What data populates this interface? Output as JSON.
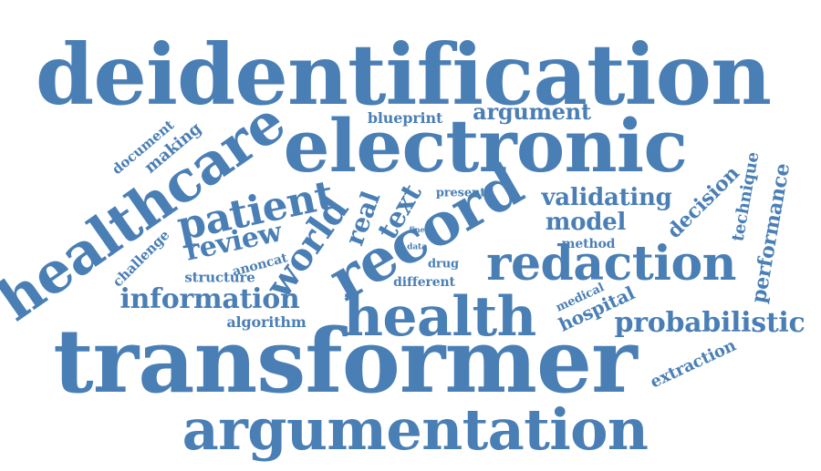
{
  "colors": {
    "word": "#4a7fb5",
    "background": "#ffffff"
  },
  "words": [
    {
      "id": "deidentification",
      "text": "deidentification"
    },
    {
      "id": "electronic",
      "text": "electronic"
    },
    {
      "id": "transformer",
      "text": "transformer"
    },
    {
      "id": "argumentation",
      "text": "argumentation"
    },
    {
      "id": "healthcare",
      "text": "healthcare"
    },
    {
      "id": "record",
      "text": "record"
    },
    {
      "id": "health",
      "text": "health"
    },
    {
      "id": "redaction",
      "text": "redaction"
    },
    {
      "id": "patient",
      "text": "patient"
    },
    {
      "id": "probabilistic",
      "text": "probabilistic"
    },
    {
      "id": "information",
      "text": "information"
    },
    {
      "id": "world",
      "text": "world"
    },
    {
      "id": "review",
      "text": "review"
    },
    {
      "id": "text",
      "text": "text"
    },
    {
      "id": "real",
      "text": "real"
    },
    {
      "id": "argument",
      "text": "argument"
    },
    {
      "id": "validating",
      "text": "validating"
    },
    {
      "id": "model",
      "text": "model"
    },
    {
      "id": "decision",
      "text": "decision"
    },
    {
      "id": "performance",
      "text": "performance"
    },
    {
      "id": "technique",
      "text": "technique"
    },
    {
      "id": "hospital",
      "text": "hospital"
    },
    {
      "id": "extraction",
      "text": "extraction"
    },
    {
      "id": "medical",
      "text": "medical"
    },
    {
      "id": "method",
      "text": "method"
    },
    {
      "id": "blueprint",
      "text": "blueprint"
    },
    {
      "id": "present",
      "text": "present"
    },
    {
      "id": "document",
      "text": "document"
    },
    {
      "id": "making",
      "text": "making"
    },
    {
      "id": "challenge",
      "text": "challenge"
    },
    {
      "id": "structure",
      "text": "structure"
    },
    {
      "id": "anoncat",
      "text": "anoncat"
    },
    {
      "id": "algorithm",
      "text": "algorithm"
    },
    {
      "id": "different",
      "text": "different"
    },
    {
      "id": "drug",
      "text": "drug"
    },
    {
      "id": "data",
      "text": "data"
    },
    {
      "id": "fine",
      "text": "fine"
    }
  ]
}
